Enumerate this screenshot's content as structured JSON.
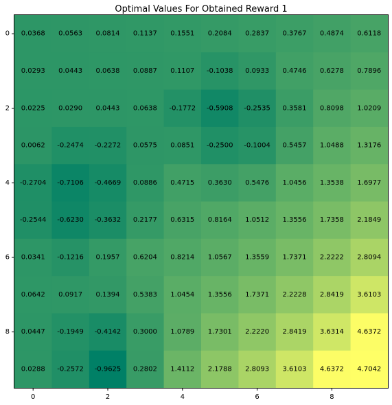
{
  "chart_data": {
    "type": "heatmap",
    "title": "Optimal Values For Obtained Reward 1",
    "colormap": "summer",
    "vmin": -0.9625,
    "vmax": 4.7042,
    "x_ticks": [
      0,
      2,
      4,
      6,
      8
    ],
    "y_ticks": [
      0,
      2,
      4,
      6,
      8
    ],
    "rows": [
      [
        0.0368,
        0.0563,
        0.0814,
        0.1137,
        0.1551,
        0.2084,
        0.2837,
        0.3767,
        0.4874,
        0.6118
      ],
      [
        0.0293,
        0.0443,
        0.0638,
        0.0887,
        0.1107,
        -0.1038,
        0.0933,
        0.4746,
        0.6278,
        0.7896
      ],
      [
        0.0225,
        0.029,
        0.0443,
        0.0638,
        -0.1772,
        -0.5908,
        -0.2535,
        0.3581,
        0.8098,
        1.0209
      ],
      [
        0.0062,
        -0.2474,
        -0.2272,
        0.0575,
        0.0851,
        -0.25,
        -0.1004,
        0.5457,
        1.0488,
        1.3176
      ],
      [
        -0.2704,
        -0.7106,
        -0.4669,
        0.0886,
        0.4715,
        0.363,
        0.5476,
        1.0456,
        1.3538,
        1.6977
      ],
      [
        -0.2544,
        -0.623,
        -0.3632,
        0.2177,
        0.6315,
        0.8164,
        1.0512,
        1.3556,
        1.7358,
        2.1849
      ],
      [
        0.0341,
        -0.1216,
        0.1957,
        0.6204,
        0.8214,
        1.0567,
        1.3559,
        1.7371,
        2.2222,
        2.8094
      ],
      [
        0.0642,
        0.0917,
        0.1394,
        0.5383,
        1.0454,
        1.3556,
        1.7371,
        2.2228,
        2.8419,
        3.6103
      ],
      [
        0.0447,
        -0.1949,
        -0.4142,
        0.3,
        1.0789,
        1.7301,
        2.222,
        2.8419,
        3.6314,
        4.6372
      ],
      [
        0.0288,
        -0.2572,
        -0.9625,
        0.2802,
        1.4112,
        2.1788,
        2.8093,
        3.6103,
        4.6372,
        4.7042
      ]
    ],
    "cell_labels": [
      [
        "0.0368",
        "0.0563",
        "0.0814",
        "0.1137",
        "0.1551",
        "0.2084",
        "0.2837",
        "0.3767",
        "0.4874",
        "0.6118"
      ],
      [
        "0.0293",
        "0.0443",
        "0.0638",
        "0.0887",
        "0.1107",
        "-0.1038",
        "0.0933",
        "0.4746",
        "0.6278",
        "0.7896"
      ],
      [
        "0.0225",
        "0.0290",
        "0.0443",
        "0.0638",
        "-0.1772",
        "-0.5908",
        "-0.2535",
        "0.3581",
        "0.8098",
        "1.0209"
      ],
      [
        "0.0062",
        "-0.2474",
        "-0.2272",
        "0.0575",
        "0.0851",
        "-0.2500",
        "-0.1004",
        "0.5457",
        "1.0488",
        "1.3176"
      ],
      [
        "-0.2704",
        "-0.7106",
        "-0.4669",
        "0.0886",
        "0.4715",
        "0.3630",
        "0.5476",
        "1.0456",
        "1.3538",
        "1.6977"
      ],
      [
        "-0.2544",
        "-0.6230",
        "-0.3632",
        "0.2177",
        "0.6315",
        "0.8164",
        "1.0512",
        "1.3556",
        "1.7358",
        "2.1849"
      ],
      [
        "0.0341",
        "-0.1216",
        "0.1957",
        "0.6204",
        "0.8214",
        "1.0567",
        "1.3559",
        "1.7371",
        "2.2222",
        "2.8094"
      ],
      [
        "0.0642",
        "0.0917",
        "0.1394",
        "0.5383",
        "1.0454",
        "1.3556",
        "1.7371",
        "2.2228",
        "2.8419",
        "3.6103"
      ],
      [
        "0.0447",
        "-0.1949",
        "-0.4142",
        "0.3000",
        "1.0789",
        "1.7301",
        "2.2220",
        "2.8419",
        "3.6314",
        "4.6372"
      ],
      [
        "0.0288",
        "-0.2572",
        "-0.9625",
        "0.2802",
        "1.4112",
        "2.1788",
        "2.8093",
        "3.6103",
        "4.6372",
        "4.7042"
      ]
    ]
  }
}
